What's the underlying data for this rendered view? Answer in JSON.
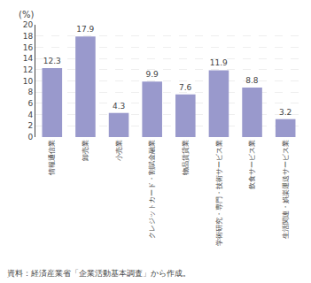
{
  "chart_data": {
    "type": "bar",
    "categories": [
      "情報通信業",
      "卸売業",
      "小売業",
      "クレジットカード・割賦金融業",
      "物品賃貸業",
      "学術研究・専門・技術サービス業",
      "飲食サービス業",
      "生活関連・娯楽運送サービス業"
    ],
    "values": [
      12.3,
      17.9,
      4.3,
      9.9,
      7.6,
      11.9,
      8.8,
      3.2
    ],
    "color": "#9999cc",
    "ylabel": "(%)",
    "ylim": [
      0,
      20
    ],
    "yticks": [
      0,
      2,
      4,
      6,
      8,
      10,
      12,
      14,
      16,
      18,
      20
    ],
    "grid": true,
    "data_labels": true,
    "annotations": [
      "資料：経済産業省「企業活動基本調査」から作成。"
    ]
  }
}
